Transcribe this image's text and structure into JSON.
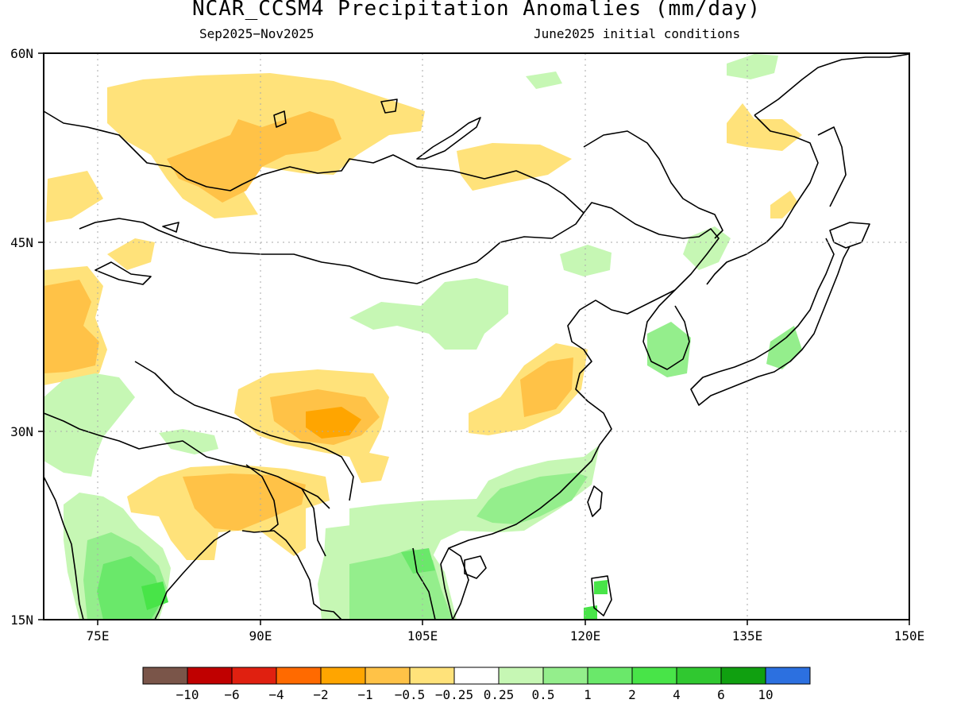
{
  "title": "NCAR_CCSM4 Precipitation Anomalies (mm/day)",
  "subtitle_left": "Sep2025−Nov2025",
  "subtitle_right": "June2025 initial conditions",
  "lat_labels": [
    "60N",
    "45N",
    "30N",
    "15N"
  ],
  "lon_labels": [
    "75E",
    "90E",
    "105E",
    "120E",
    "135E",
    "150E"
  ],
  "colorbar": {
    "colors": [
      "#7a5549",
      "#c00000",
      "#e02010",
      "#ff6a00",
      "#ffa500",
      "#ffc247",
      "#ffe27a",
      "#ffffff",
      "#c6f7b4",
      "#94ee8c",
      "#6ae86a",
      "#48e448",
      "#30c830",
      "#10a010",
      "#2c70e0"
    ],
    "labels": [
      "−10",
      "−6",
      "−4",
      "−2",
      "−1",
      "−0.5",
      "−0.25",
      "0.25",
      "0.5",
      "1",
      "2",
      "4",
      "6",
      "10"
    ]
  },
  "map_extent": {
    "lon": [
      70,
      150
    ],
    "lat": [
      15,
      60
    ]
  }
}
